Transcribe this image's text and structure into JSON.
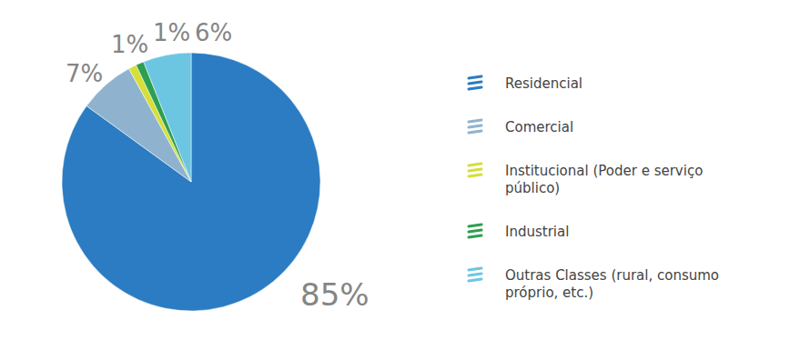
{
  "chart_data": {
    "type": "pie",
    "categories": [
      "Residencial",
      "Comercial",
      "Institucional (Poder e serviço público)",
      "Industrial",
      "Outras Classes (rural, consumo próprio, etc.)"
    ],
    "values": [
      85,
      7,
      1,
      1,
      6
    ],
    "value_labels": [
      "85%",
      "7%",
      "1%",
      "1%",
      "6%"
    ],
    "colors": [
      "#2b7cc2",
      "#8fb3cf",
      "#d6df3a",
      "#2e9e4f",
      "#6cc6e2"
    ],
    "data_labels": true,
    "legend": "right"
  }
}
